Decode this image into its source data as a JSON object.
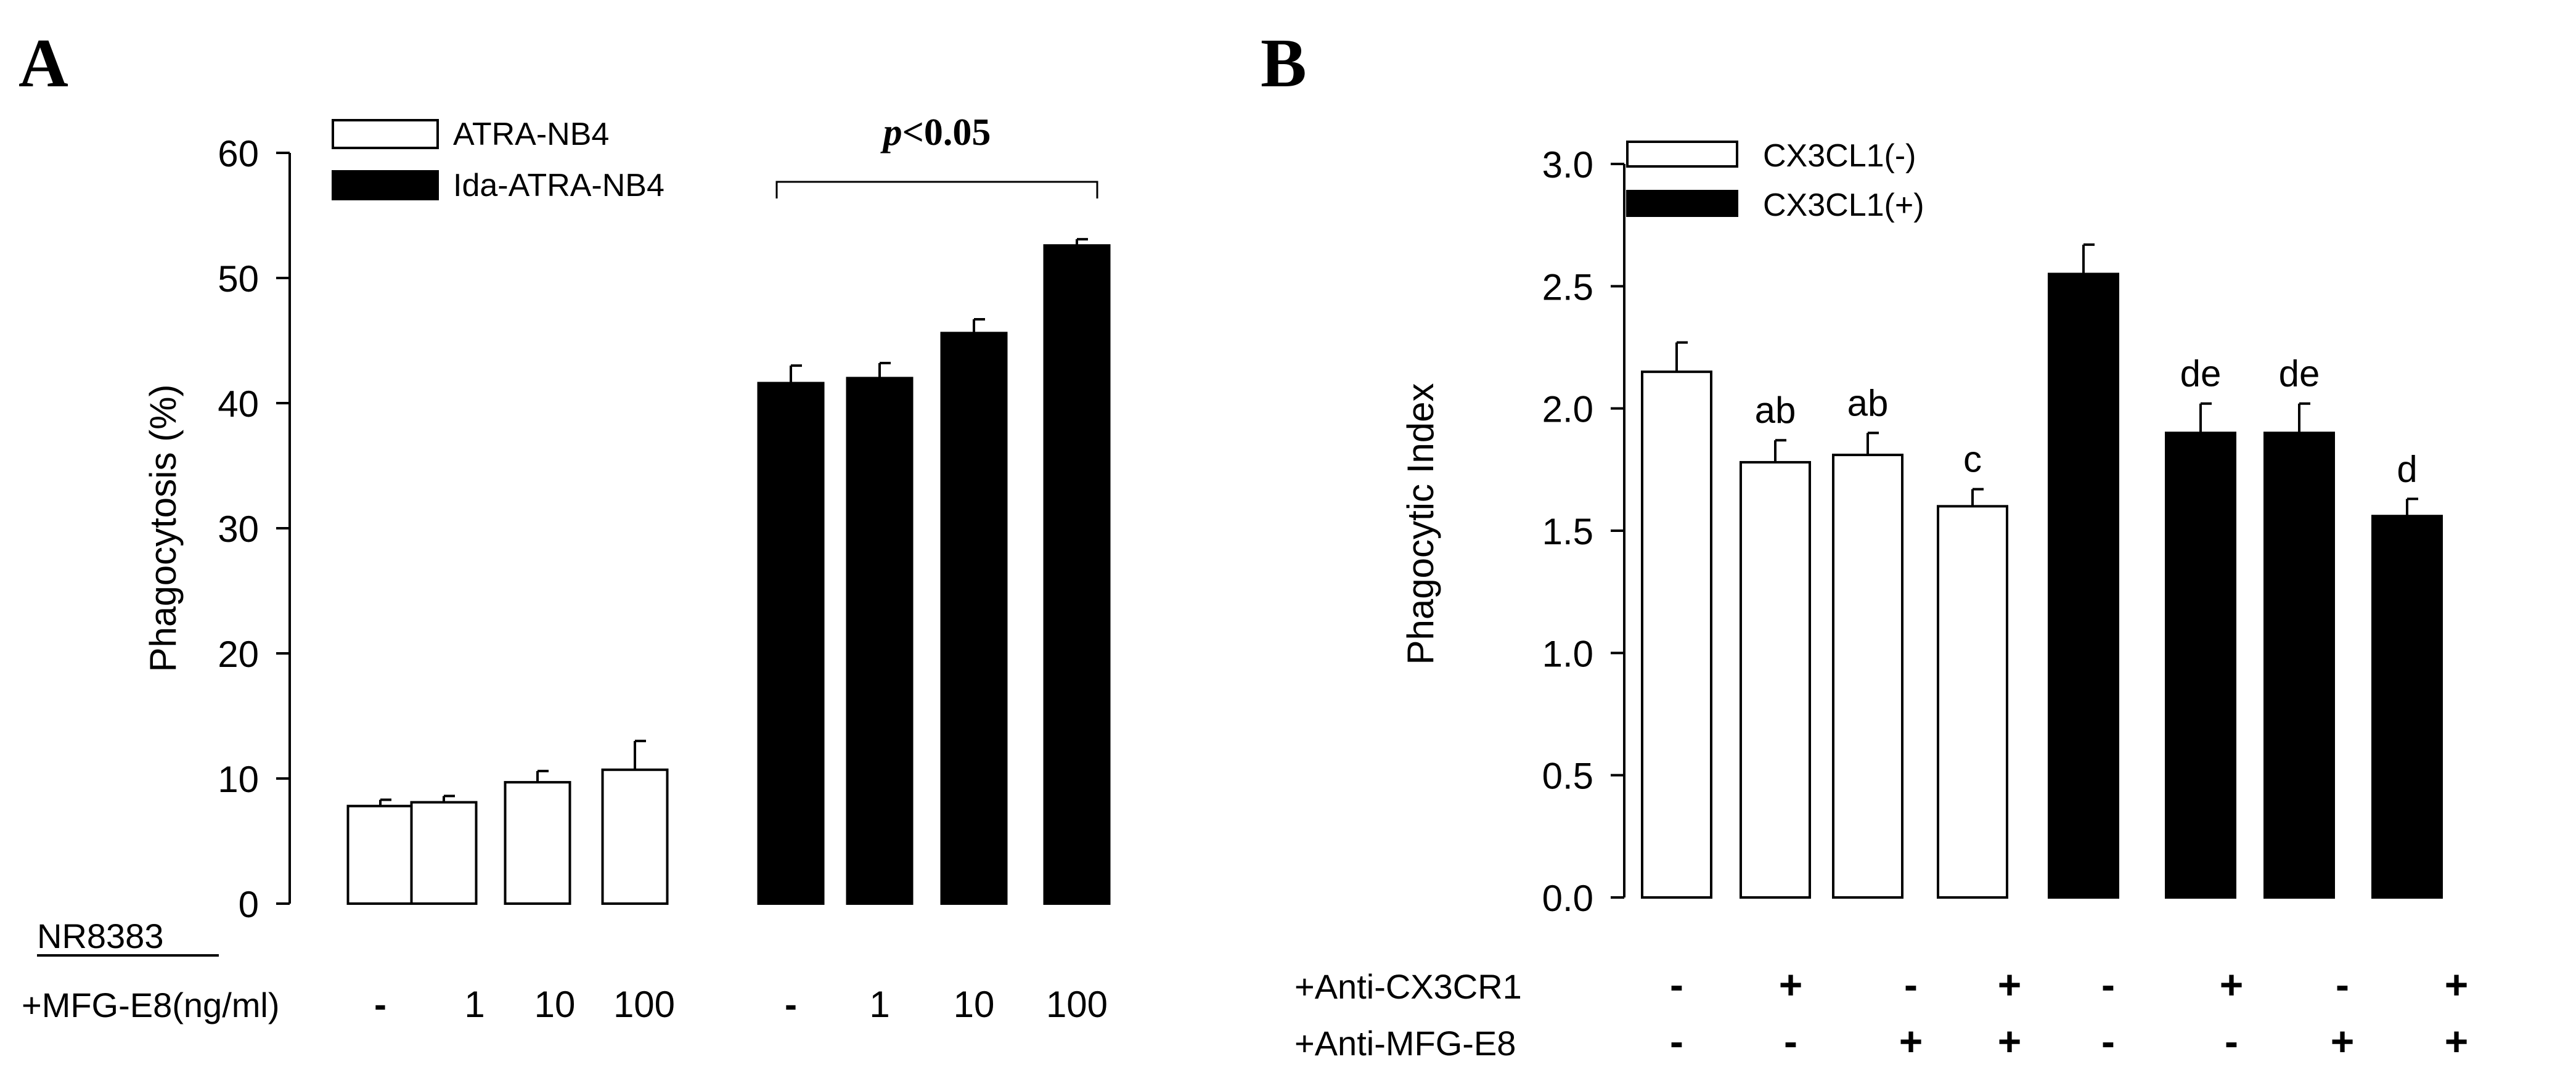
{
  "panels": {
    "A": {
      "letter": "A"
    },
    "B": {
      "letter": "B"
    }
  },
  "chart_data": [
    {
      "panel": "A",
      "type": "bar",
      "ylabel": "Phagocytosis (%)",
      "xlabel": "",
      "ylim": [
        0,
        60
      ],
      "yticks": [
        "0",
        "10",
        "20",
        "30",
        "40",
        "50",
        "60"
      ],
      "grid": false,
      "legend_position": "top-left",
      "series": [
        {
          "name": "ATRA-NB4",
          "color": "#ffffff",
          "values": [
            7.8,
            8.1,
            9.7,
            10.7
          ],
          "errors": [
            0.5,
            0.5,
            0.9,
            2.3
          ]
        },
        {
          "name": "Ida-ATRA-NB4",
          "color": "#000000",
          "values": [
            41.6,
            42.0,
            45.6,
            52.6
          ],
          "errors": [
            1.4,
            1.2,
            1.1,
            0.5
          ]
        }
      ],
      "group_label": "NR8383",
      "row_label": "+MFG-E8(ng/ml)",
      "conditions": [
        "-",
        "1",
        "10",
        "100",
        "-",
        "1",
        "10",
        "100"
      ],
      "annotation": {
        "italic": "p",
        "text": "<0.05"
      }
    },
    {
      "panel": "B",
      "type": "bar",
      "ylabel": "Phagocytic Index",
      "xlabel": "",
      "ylim": [
        0,
        3
      ],
      "yticks": [
        "0.0",
        "0.5",
        "1.0",
        "1.5",
        "2.0",
        "2.5",
        "3.0"
      ],
      "grid": false,
      "legend_position": "top-left",
      "series": [
        {
          "name": "CX3CL1(-)",
          "color": "#ffffff",
          "values": [
            2.15,
            1.78,
            1.81,
            1.6
          ],
          "errors": [
            0.12,
            0.09,
            0.09,
            0.07
          ],
          "labels": [
            "",
            "ab",
            "ab",
            "c"
          ]
        },
        {
          "name": "CX3CL1(+)",
          "color": "#000000",
          "values": [
            2.55,
            1.9,
            1.9,
            1.56
          ],
          "errors": [
            0.12,
            0.12,
            0.12,
            0.07
          ],
          "labels": [
            "",
            "de",
            "de",
            "d"
          ]
        }
      ],
      "condition_rows": [
        {
          "label": "+Anti-CX3CR1",
          "values": [
            "-",
            "+",
            "-",
            "+",
            "-",
            "+",
            "-",
            "+"
          ]
        },
        {
          "label": "+Anti-MFG-E8",
          "values": [
            "-",
            "-",
            "+",
            "+",
            "-",
            "-",
            "+",
            "+"
          ]
        }
      ]
    }
  ]
}
